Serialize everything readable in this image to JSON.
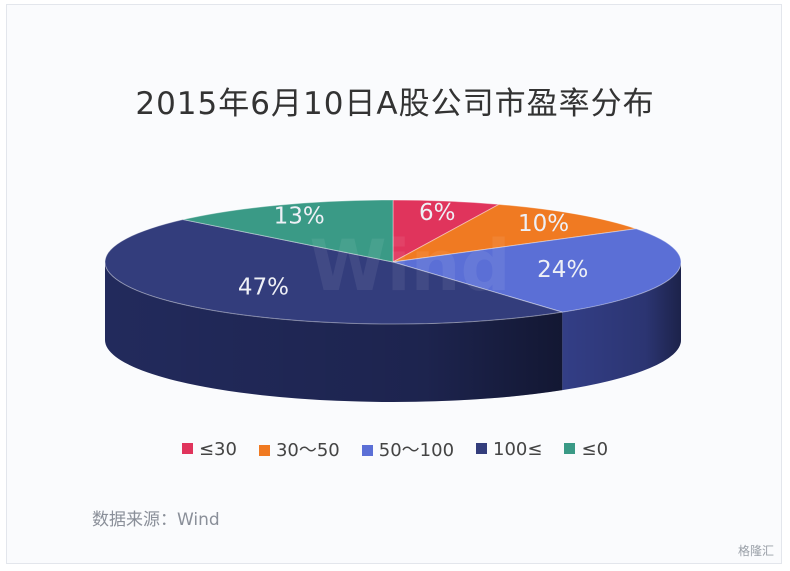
{
  "watermark_text": "Wind",
  "corner_badge": "格隆汇",
  "source": "数据来源：Wind",
  "chart_data": {
    "type": "pie",
    "title": "2015年6月10日A股公司市盈率分布",
    "unit": "%",
    "legend_position": "bottom",
    "slices": [
      {
        "label": "≤30",
        "value": 6,
        "color": "#e0345c",
        "side_color": "#a4223f"
      },
      {
        "label": "30～50",
        "value": 10,
        "color": "#f07a22",
        "side_color": "#b4581a"
      },
      {
        "label": "50～100",
        "value": 24,
        "color": "#5b6fd6",
        "side_color": "#333e86"
      },
      {
        "label": "100≤",
        "value": 47,
        "color": "#333d7c",
        "side_color": "#222a5c"
      },
      {
        "label": "≤0",
        "value": 13,
        "color": "#3a9a86",
        "side_color": "#2a6e60"
      }
    ]
  }
}
